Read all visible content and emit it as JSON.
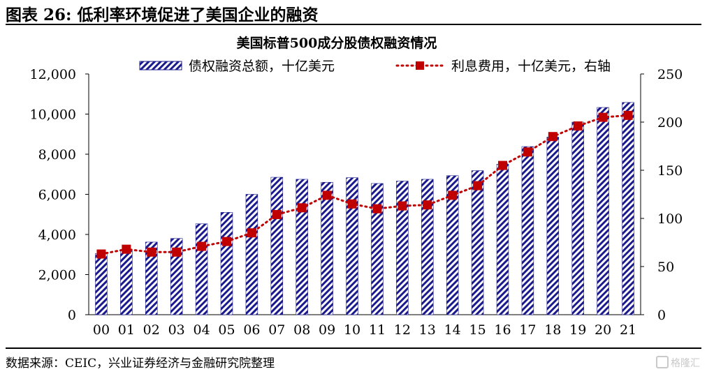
{
  "figure_title": "图表 26:  低利率环境促进了美国企业的融资",
  "source": "数据来源：CEIC，兴业证券经济与金融研究院整理",
  "watermark": "格隆汇",
  "colors": {
    "bar": "#1a1a8c",
    "line": "#c00000"
  },
  "chart_data": {
    "type": "bar",
    "title": "美国标普500成分股债权融资情况",
    "categories": [
      "00",
      "01",
      "02",
      "03",
      "04",
      "05",
      "06",
      "07",
      "08",
      "09",
      "10",
      "11",
      "12",
      "13",
      "14",
      "15",
      "16",
      "17",
      "18",
      "19",
      "20",
      "21"
    ],
    "series": [
      {
        "name": "债权融资总额，十亿美元",
        "type": "bar",
        "axis": "left",
        "values": [
          3050,
          3250,
          3620,
          3800,
          4530,
          5100,
          6000,
          6850,
          6750,
          6600,
          6830,
          6540,
          6660,
          6750,
          6930,
          7180,
          7500,
          8380,
          8850,
          9600,
          10330,
          10580
        ]
      },
      {
        "name": "利息费用，十亿美元，右轴",
        "type": "line",
        "axis": "right",
        "values": [
          63,
          68,
          65,
          65,
          71,
          76,
          85,
          104,
          111,
          124,
          115,
          110,
          113,
          114,
          124,
          134,
          155,
          169,
          185,
          196,
          205,
          207
        ]
      }
    ],
    "y_left": {
      "min": 0,
      "max": 12000,
      "ticks": [
        "0",
        "2,000",
        "4,000",
        "6,000",
        "8,000",
        "10,000",
        "12,000"
      ]
    },
    "y_right": {
      "min": 0,
      "max": 250,
      "ticks": [
        "0",
        "50",
        "100",
        "150",
        "200",
        "250"
      ]
    },
    "legend_position": "top",
    "grid": false
  }
}
